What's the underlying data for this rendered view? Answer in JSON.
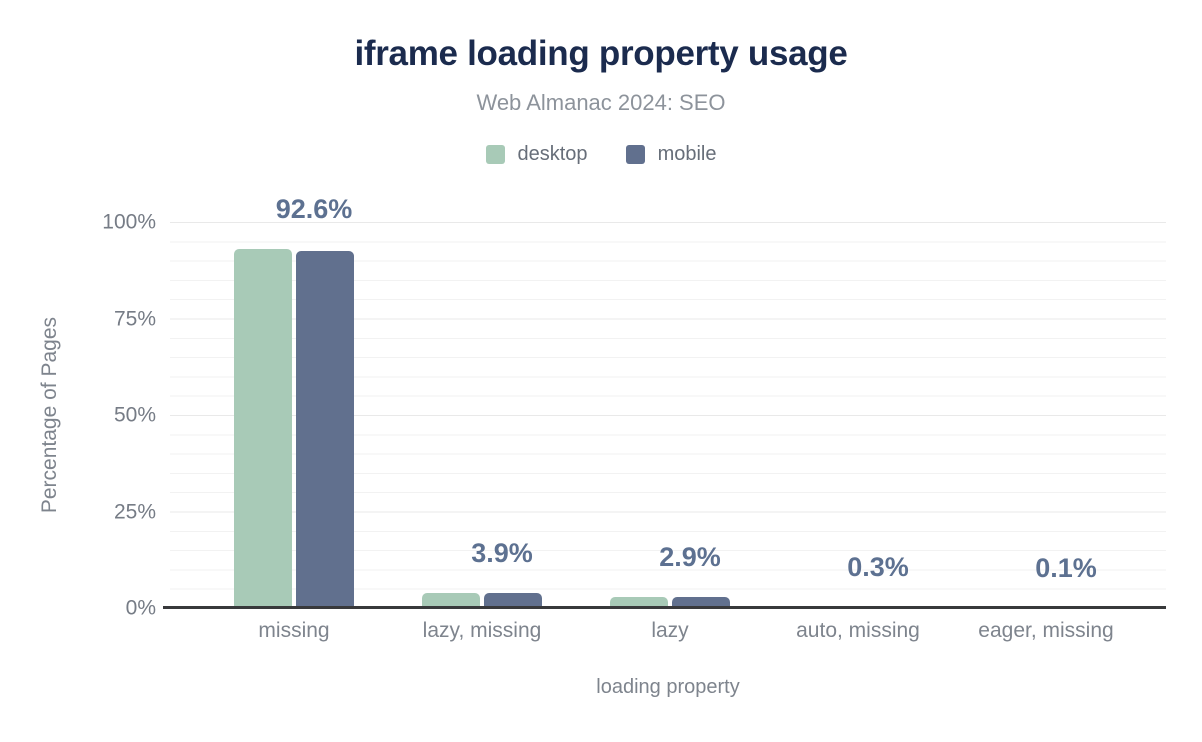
{
  "header": {
    "title": "iframe loading property usage",
    "subtitle": "Web Almanac 2024: SEO"
  },
  "legend": {
    "items": [
      {
        "label": "desktop",
        "color": "#a8cab7"
      },
      {
        "label": "mobile",
        "color": "#61708e"
      }
    ]
  },
  "colors": {
    "title": "#1b2b4e",
    "subtitle": "#8d939b",
    "value_label": "#5d7191",
    "axis_line": "#38393b",
    "grid_minor": "#f2f2f2",
    "grid_major": "#e9e9e9",
    "tick_label": "#767c86",
    "category_label": "#7e848d",
    "desktop": "#a8cab7",
    "mobile": "#61708e"
  },
  "chart_data": {
    "type": "bar",
    "title": "iframe loading property usage",
    "subtitle": "Web Almanac 2024: SEO",
    "categories": [
      "missing",
      "lazy, missing",
      "lazy",
      "auto, missing",
      "eager, missing"
    ],
    "series": [
      {
        "name": "desktop",
        "color": "#a8cab7",
        "values": [
          92.9,
          3.9,
          2.9,
          0.3,
          0.1
        ]
      },
      {
        "name": "mobile",
        "color": "#61708e",
        "values": [
          92.6,
          3.9,
          2.9,
          0.3,
          0.1
        ]
      }
    ],
    "value_labels": [
      "92.6%",
      "3.9%",
      "2.9%",
      "0.3%",
      "0.1%"
    ],
    "xlabel": "loading property",
    "ylabel": "Percentage of Pages",
    "ylim": [
      0,
      100
    ],
    "yticks": [
      "0%",
      "25%",
      "50%",
      "75%",
      "100%"
    ],
    "grid": "horizontal minor every 5%, major every 25%",
    "legend_position": "top"
  }
}
